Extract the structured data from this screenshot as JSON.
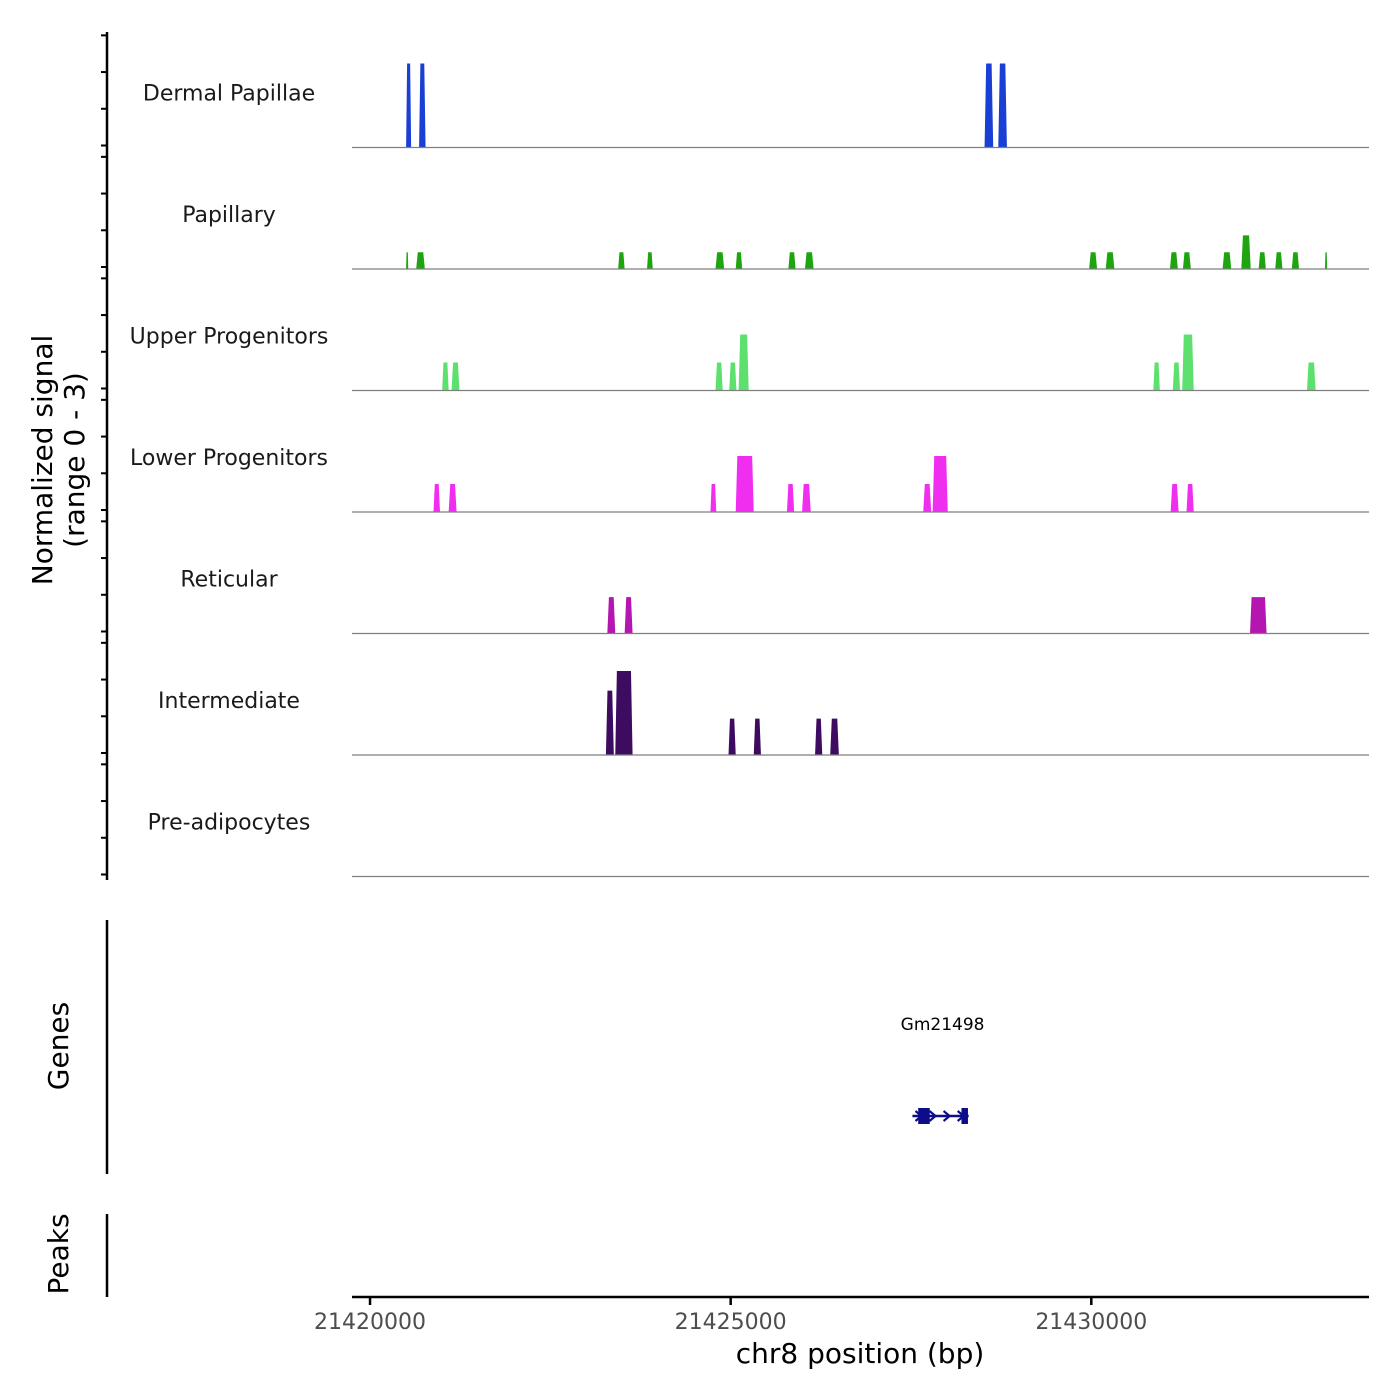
{
  "chart_data": {
    "type": "coverage-track",
    "y_title_line1": "Normalized signal",
    "y_title_line2": "(range 0 - 3)",
    "x_title": "chr8 position (bp)",
    "genes_title": "Genes",
    "peaks_title": "Peaks",
    "x_range": [
      21419750,
      21433850
    ],
    "x_ticks": [
      21420000,
      21425000,
      21430000
    ],
    "x_tick_labels": [
      "21420000",
      "21425000",
      "21430000"
    ],
    "y_range": [
      0,
      3
    ],
    "tracks": [
      {
        "name": "Dermal Papillae",
        "color": "#1a3fd4",
        "peaks": [
          {
            "start": 21420500,
            "end": 21420570,
            "height": 3.0
          },
          {
            "start": 21420680,
            "end": 21420770,
            "height": 3.0
          },
          {
            "start": 21428520,
            "end": 21428640,
            "height": 3.0
          },
          {
            "start": 21428710,
            "end": 21428830,
            "height": 3.0
          }
        ]
      },
      {
        "name": "Papillary",
        "color": "#1ea40f",
        "peaks": [
          {
            "start": 21420500,
            "end": 21420530,
            "height": 0.6
          },
          {
            "start": 21420640,
            "end": 21420760,
            "height": 0.6
          },
          {
            "start": 21423440,
            "end": 21423530,
            "height": 0.6
          },
          {
            "start": 21423840,
            "end": 21423920,
            "height": 0.6
          },
          {
            "start": 21424790,
            "end": 21424910,
            "height": 0.6
          },
          {
            "start": 21425070,
            "end": 21425160,
            "height": 0.6
          },
          {
            "start": 21425800,
            "end": 21425900,
            "height": 0.6
          },
          {
            "start": 21426030,
            "end": 21426150,
            "height": 0.6
          },
          {
            "start": 21429970,
            "end": 21430080,
            "height": 0.6
          },
          {
            "start": 21430200,
            "end": 21430320,
            "height": 0.6
          },
          {
            "start": 21431090,
            "end": 21431200,
            "height": 0.6
          },
          {
            "start": 21431270,
            "end": 21431380,
            "height": 0.6
          },
          {
            "start": 21431820,
            "end": 21431940,
            "height": 0.6
          },
          {
            "start": 21432080,
            "end": 21432210,
            "height": 1.2
          },
          {
            "start": 21432320,
            "end": 21432420,
            "height": 0.6
          },
          {
            "start": 21432550,
            "end": 21432650,
            "height": 0.6
          },
          {
            "start": 21432780,
            "end": 21432880,
            "height": 0.6
          },
          {
            "start": 21433240,
            "end": 21433270,
            "height": 0.6
          }
        ]
      },
      {
        "name": "Upper Progenitors",
        "color": "#5ee06e",
        "peaks": [
          {
            "start": 21421000,
            "end": 21421090,
            "height": 1.0
          },
          {
            "start": 21421130,
            "end": 21421240,
            "height": 1.0
          },
          {
            "start": 21424790,
            "end": 21424890,
            "height": 1.0
          },
          {
            "start": 21424980,
            "end": 21425080,
            "height": 1.0
          },
          {
            "start": 21425110,
            "end": 21425250,
            "height": 2.0
          },
          {
            "start": 21430860,
            "end": 21430950,
            "height": 1.0
          },
          {
            "start": 21431130,
            "end": 21431230,
            "height": 1.0
          },
          {
            "start": 21431260,
            "end": 21431420,
            "height": 2.0
          },
          {
            "start": 21432990,
            "end": 21433110,
            "height": 1.0
          }
        ]
      },
      {
        "name": "Lower Progenitors",
        "color": "#f02ef0",
        "peaks": [
          {
            "start": 21420880,
            "end": 21420970,
            "height": 1.0
          },
          {
            "start": 21421090,
            "end": 21421200,
            "height": 1.0
          },
          {
            "start": 21424720,
            "end": 21424800,
            "height": 1.0
          },
          {
            "start": 21425070,
            "end": 21425320,
            "height": 2.0
          },
          {
            "start": 21425780,
            "end": 21425880,
            "height": 1.0
          },
          {
            "start": 21425990,
            "end": 21426110,
            "height": 1.0
          },
          {
            "start": 21427670,
            "end": 21427780,
            "height": 1.0
          },
          {
            "start": 21427800,
            "end": 21428010,
            "height": 2.0
          },
          {
            "start": 21431100,
            "end": 21431210,
            "height": 1.0
          },
          {
            "start": 21431320,
            "end": 21431420,
            "height": 1.0
          }
        ]
      },
      {
        "name": "Reticular",
        "color": "#b515b0",
        "peaks": [
          {
            "start": 21423290,
            "end": 21423400,
            "height": 1.3
          },
          {
            "start": 21423530,
            "end": 21423640,
            "height": 1.3
          },
          {
            "start": 21432200,
            "end": 21432430,
            "height": 1.3
          }
        ]
      },
      {
        "name": "Intermediate",
        "color": "#3d0c61",
        "peaks": [
          {
            "start": 21423270,
            "end": 21423380,
            "height": 2.3
          },
          {
            "start": 21423400,
            "end": 21423640,
            "height": 3.0
          },
          {
            "start": 21424970,
            "end": 21425070,
            "height": 1.3
          },
          {
            "start": 21425320,
            "end": 21425420,
            "height": 1.3
          },
          {
            "start": 21426170,
            "end": 21426270,
            "height": 1.3
          },
          {
            "start": 21426380,
            "end": 21426500,
            "height": 1.3
          }
        ]
      },
      {
        "name": "Pre-adipocytes",
        "color": "#2a0845",
        "peaks": []
      }
    ],
    "genes": [
      {
        "name": "Gm21498",
        "color": "#0d0d8a",
        "start": 21427520,
        "end": 21428300,
        "strand": "+",
        "exons": [
          [
            21427600,
            21427760
          ],
          [
            21428200,
            21428290
          ]
        ]
      }
    ],
    "peaks": []
  }
}
